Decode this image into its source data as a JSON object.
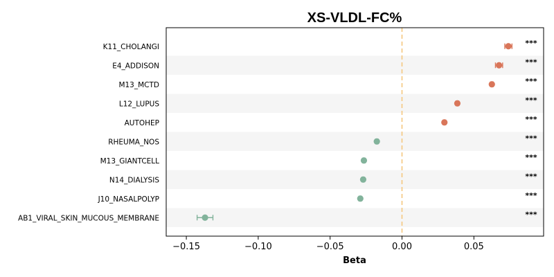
{
  "chart_data": {
    "type": "scatter",
    "title": "XS-VLDL-FC%",
    "xlabel": "Beta",
    "ylabel": "",
    "xlim": [
      -0.164,
      0.0985
    ],
    "xticks": [
      -0.15,
      -0.1,
      -0.05,
      0.0,
      0.05
    ],
    "xtick_labels": [
      "−0.15",
      "−0.10",
      "−0.05",
      "0.00",
      "0.05"
    ],
    "reference_line_x": 0.0,
    "grid": false,
    "alternating_row_shading": true,
    "categories": [
      "K11_CHOLANGI",
      "E4_ADDISON",
      "M13_MCTD",
      "L12_LUPUS",
      "AUTOHEP",
      "RHEUMA_NOS",
      "M13_GIANTCELL",
      "N14_DIALYSIS",
      "J10_NASALPOLYP",
      "AB1_VIRAL_SKIN_MUCOUS_MEMBRANE"
    ],
    "values": [
      0.074,
      0.0675,
      0.0625,
      0.0385,
      0.0295,
      -0.0175,
      -0.0265,
      -0.027,
      -0.029,
      -0.137
    ],
    "ci_low": [
      0.0715,
      0.065,
      0.0615,
      0.0375,
      0.0285,
      -0.0185,
      -0.0275,
      -0.028,
      -0.03,
      -0.1425
    ],
    "ci_high": [
      0.0765,
      0.07,
      0.0635,
      0.0395,
      0.0305,
      -0.0165,
      -0.0255,
      -0.026,
      -0.028,
      -0.1315
    ],
    "significance": [
      "***",
      "***",
      "***",
      "***",
      "***",
      "***",
      "***",
      "***",
      "***",
      "***"
    ],
    "colors": {
      "positive": "#d9765a",
      "negative": "#82b39b",
      "reference_line": "#f5c77e",
      "row_shade": "#f5f5f5"
    }
  }
}
